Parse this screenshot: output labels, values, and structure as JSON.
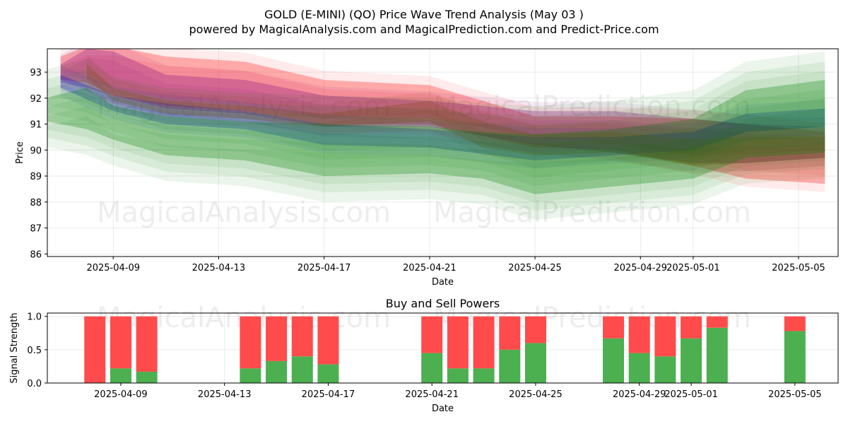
{
  "title_line1": "GOLD (E-MINI) (QO) Price Wave Trend Analysis (May 03 )",
  "title_line2": "powered by MagicalAnalysis.com and MagicalPrediction.com and Predict-Price.com",
  "watermarks": [
    "MagicalAnalysis.com",
    "MagicalPrediction.com"
  ],
  "colors": {
    "red": "#ff0000",
    "green": "#008000",
    "blue": "#0000ff",
    "purple": "#800080",
    "brown": "#8b4513",
    "bar_buy": "#4caf50",
    "bar_sell": "#ff4b4b"
  },
  "chart_data": [
    {
      "type": "area",
      "xlabel": "Date",
      "ylabel": "Price",
      "ylim": [
        85.9,
        93.9
      ],
      "xlim": [
        "2025-04-06T12:00",
        "2025-05-06T12:00"
      ],
      "x_ticks": [
        "2025-04-09",
        "2025-04-13",
        "2025-04-17",
        "2025-04-21",
        "2025-04-25",
        "2025-04-29",
        "2025-05-01",
        "2025-05-05"
      ],
      "y_ticks": [
        86,
        87,
        88,
        89,
        90,
        91,
        92,
        93
      ],
      "grid": true,
      "bands": [
        {
          "color": "red",
          "dates": [
            "2025-04-07",
            "2025-04-08",
            "2025-04-09",
            "2025-04-11",
            "2025-04-14",
            "2025-04-17",
            "2025-04-21",
            "2025-04-25",
            "2025-04-28",
            "2025-05-01",
            "2025-05-03",
            "2025-05-06"
          ],
          "upper": [
            93.6,
            94.0,
            94.0,
            93.6,
            93.4,
            92.7,
            92.5,
            91.3,
            91.3,
            91.2,
            91.0,
            90.7
          ],
          "lower": [
            92.7,
            92.6,
            92.1,
            91.7,
            91.5,
            91.0,
            91.0,
            90.1,
            90.0,
            89.4,
            88.9,
            88.7
          ]
        },
        {
          "color": "purple",
          "dates": [
            "2025-04-07",
            "2025-04-08",
            "2025-04-09",
            "2025-04-11",
            "2025-04-14",
            "2025-04-17",
            "2025-04-21",
            "2025-04-25",
            "2025-04-28",
            "2025-05-01",
            "2025-05-03",
            "2025-05-06"
          ],
          "upper": [
            93.3,
            93.9,
            93.8,
            92.9,
            92.7,
            92.1,
            91.9,
            91.5,
            91.5,
            91.2,
            91.0,
            90.9
          ],
          "lower": [
            92.6,
            92.4,
            92.1,
            91.6,
            91.4,
            90.9,
            90.9,
            90.2,
            89.9,
            89.5,
            89.5,
            89.7
          ]
        },
        {
          "color": "blue",
          "dates": [
            "2025-04-07",
            "2025-04-09",
            "2025-04-11",
            "2025-04-14",
            "2025-04-17",
            "2025-04-21",
            "2025-04-25",
            "2025-04-28",
            "2025-05-01",
            "2025-05-03",
            "2025-05-06"
          ],
          "upper": [
            92.9,
            92.1,
            91.8,
            91.5,
            91.0,
            90.8,
            90.5,
            90.5,
            90.7,
            91.4,
            91.6
          ],
          "lower": [
            92.4,
            91.5,
            91.0,
            90.8,
            90.2,
            90.1,
            89.6,
            89.8,
            90.0,
            90.7,
            90.9
          ]
        },
        {
          "color": "brown",
          "dates": [
            "2025-04-08",
            "2025-04-09",
            "2025-04-11",
            "2025-04-14",
            "2025-04-17",
            "2025-04-21",
            "2025-04-23",
            "2025-04-25",
            "2025-04-28",
            "2025-05-01",
            "2025-05-03",
            "2025-05-06"
          ],
          "upper": [
            93.3,
            92.4,
            91.9,
            91.7,
            91.4,
            91.9,
            91.1,
            90.6,
            90.7,
            90.4,
            90.5,
            90.5
          ],
          "lower": [
            92.8,
            91.9,
            91.4,
            91.2,
            90.9,
            91.1,
            90.1,
            89.8,
            89.9,
            89.4,
            89.5,
            89.7
          ]
        },
        {
          "color": "green",
          "dates": [
            "2025-04-06",
            "2025-04-08",
            "2025-04-09",
            "2025-04-11",
            "2025-04-14",
            "2025-04-17",
            "2025-04-21",
            "2025-04-23",
            "2025-04-25",
            "2025-04-28",
            "2025-05-01",
            "2025-05-03",
            "2025-05-06"
          ],
          "upper": [
            91.9,
            92.4,
            91.7,
            91.3,
            91.1,
            91.0,
            90.9,
            90.7,
            90.6,
            90.8,
            91.2,
            92.3,
            92.7
          ],
          "lower": [
            91.2,
            90.8,
            90.4,
            89.8,
            89.6,
            89.0,
            89.1,
            88.9,
            88.3,
            88.6,
            88.9,
            89.7,
            89.9
          ]
        }
      ]
    },
    {
      "type": "bar",
      "title": "Buy and Sell Powers",
      "xlabel": "Date",
      "ylabel": "Signal Strength",
      "ylim": [
        0,
        1.05
      ],
      "y_ticks": [
        0.0,
        0.5,
        1.0
      ],
      "y_tick_labels": [
        "0.0",
        "0.5",
        "1.0"
      ],
      "x_ticks": [
        "2025-04-09",
        "2025-04-13",
        "2025-04-17",
        "2025-04-21",
        "2025-04-25",
        "2025-04-29",
        "2025-05-01",
        "2025-05-05"
      ],
      "x": [
        "2025-04-08",
        "2025-04-09",
        "2025-04-10",
        "2025-04-14",
        "2025-04-15",
        "2025-04-16",
        "2025-04-17",
        "2025-04-21",
        "2025-04-22",
        "2025-04-23",
        "2025-04-24",
        "2025-04-25",
        "2025-04-28",
        "2025-04-29",
        "2025-04-30",
        "2025-05-01",
        "2025-05-02",
        "2025-05-05"
      ],
      "series": [
        {
          "name": "",
          "color": "bar_buy",
          "values": [
            0.0,
            0.22,
            0.17,
            0.22,
            0.33,
            0.4,
            0.28,
            0.45,
            0.22,
            0.22,
            0.5,
            0.6,
            0.67,
            0.45,
            0.4,
            0.67,
            0.83,
            0.78
          ]
        },
        {
          "name": "",
          "color": "bar_sell",
          "values": [
            1.0,
            0.78,
            0.83,
            0.78,
            0.67,
            0.6,
            0.72,
            0.55,
            0.78,
            0.78,
            0.5,
            0.4,
            0.33,
            0.55,
            0.6,
            0.33,
            0.17,
            0.22
          ]
        }
      ]
    }
  ]
}
